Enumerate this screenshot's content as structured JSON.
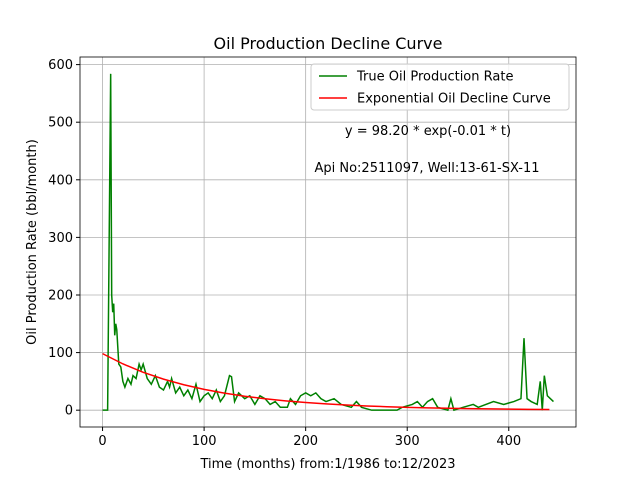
{
  "chart_data": {
    "type": "line",
    "title": "Oil Production Decline Curve",
    "xlabel": "Time (months) from:1/1986 to:12/2023",
    "ylabel": "Oil Production Rate (bbl/month)",
    "annotations": [
      "y = 98.20 * exp(-0.01 * t)",
      "Api No:2511097, Well:13-61-SX-11"
    ],
    "xlim": [
      -22.2,
      466.2
    ],
    "ylim": [
      -29.2,
      613.2
    ],
    "xticks": [
      0,
      100,
      200,
      300,
      400
    ],
    "yticks": [
      0,
      100,
      200,
      300,
      400,
      500,
      600
    ],
    "grid": true,
    "legend": "upper right",
    "series": [
      {
        "name": "True Oil Production Rate",
        "color": "#008000",
        "x": [
          0,
          5,
          8,
          9,
          10,
          11,
          12,
          13,
          14,
          16,
          18,
          20,
          22,
          25,
          28,
          30,
          33,
          36,
          38,
          40,
          44,
          48,
          52,
          56,
          60,
          64,
          66,
          68,
          72,
          76,
          80,
          84,
          88,
          92,
          96,
          100,
          104,
          108,
          112,
          116,
          120,
          125,
          127,
          130,
          134,
          140,
          145,
          150,
          155,
          160,
          165,
          170,
          175,
          182,
          185,
          190,
          195,
          200,
          205,
          210,
          215,
          220,
          228,
          235,
          245,
          250,
          255,
          265,
          290,
          295,
          305,
          310,
          315,
          320,
          325,
          330,
          340,
          343,
          346,
          355,
          365,
          370,
          385,
          395,
          405,
          412,
          415,
          418,
          422,
          428,
          431,
          433,
          435,
          438,
          441,
          444
        ],
        "values": [
          0,
          0,
          584,
          200,
          170,
          185,
          130,
          150,
          140,
          80,
          75,
          50,
          40,
          55,
          45,
          60,
          55,
          80,
          70,
          80,
          55,
          45,
          60,
          40,
          35,
          50,
          40,
          55,
          30,
          40,
          25,
          35,
          20,
          45,
          15,
          25,
          30,
          20,
          35,
          15,
          25,
          60,
          58,
          15,
          30,
          20,
          25,
          10,
          25,
          20,
          10,
          15,
          5,
          5,
          20,
          10,
          25,
          30,
          25,
          30,
          20,
          15,
          20,
          10,
          5,
          15,
          5,
          0,
          0,
          5,
          10,
          15,
          5,
          15,
          20,
          5,
          0,
          20,
          0,
          5,
          10,
          5,
          15,
          10,
          15,
          20,
          125,
          20,
          15,
          10,
          50,
          0,
          60,
          25,
          20,
          15
        ]
      },
      {
        "name": "Exponential Oil Decline Curve",
        "color": "#ff0000",
        "x": [
          0,
          20,
          40,
          60,
          80,
          100,
          120,
          140,
          160,
          180,
          200,
          220,
          240,
          260,
          280,
          300,
          320,
          340,
          360,
          380,
          400,
          420,
          440
        ],
        "values": [
          98.2,
          80.4,
          65.8,
          53.9,
          44.1,
          36.1,
          29.6,
          24.2,
          19.8,
          16.2,
          13.3,
          10.9,
          8.9,
          7.3,
          6.0,
          4.9,
          4.0,
          3.3,
          2.7,
          2.2,
          1.8,
          1.5,
          1.2
        ]
      }
    ]
  }
}
